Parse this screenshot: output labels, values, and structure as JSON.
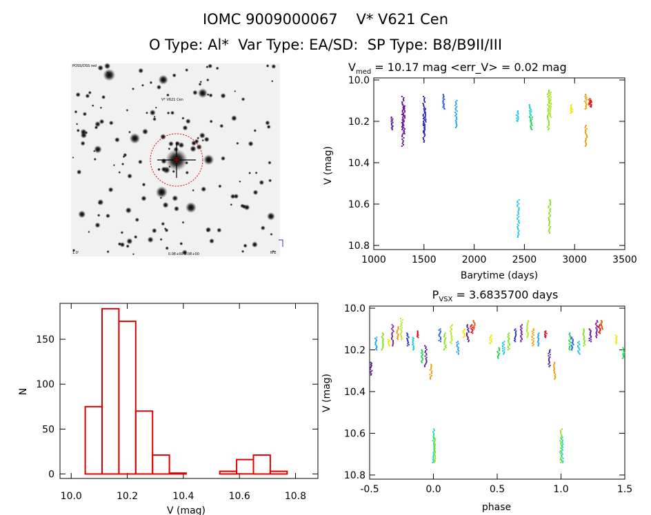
{
  "header": {
    "title": "IOMC 9009000067    V* V621 Cen",
    "subtitle": "O Type: Al*  Var Type: EA/SD:  SP Type: B8/B9II/III"
  },
  "image_panel": {
    "label_top_left": "POSS/DSS red",
    "label_marker": "V* V621 Cen",
    "label_bottom": "0.0E+00 0.0E+00",
    "label_bottom_left": "1.0'",
    "label_bottom_right": "N E",
    "circle_color": "#dd0000"
  },
  "chart_data": [
    {
      "type": "scatter",
      "title_prefix": "V",
      "title_sub": "med",
      "title_rest": " = 10.17 mag <err_V> = 0.02 mag",
      "xlabel": "Barytime (days)",
      "ylabel": "V (mag)",
      "xlim": [
        1000,
        3500
      ],
      "ylim": [
        10.82,
        9.99
      ],
      "xticks": [
        "1000",
        "1500",
        "2000",
        "2500",
        "3000",
        "3500"
      ],
      "yticks": [
        "10.0",
        "10.2",
        "10.4",
        "10.6",
        "10.8"
      ],
      "groups": [
        {
          "x": 1180,
          "y0": 10.18,
          "y1": 10.24,
          "color": "#55219a"
        },
        {
          "x": 1290,
          "y0": 10.08,
          "y1": 10.32,
          "color": "#5a1a8c"
        },
        {
          "x": 1300,
          "y0": 10.12,
          "y1": 10.26,
          "color": "#7a1a9a"
        },
        {
          "x": 1500,
          "y0": 10.08,
          "y1": 10.3,
          "color": "#3a22a8"
        },
        {
          "x": 1510,
          "y0": 10.14,
          "y1": 10.26,
          "color": "#2a3bbd"
        },
        {
          "x": 1700,
          "y0": 10.07,
          "y1": 10.14,
          "color": "#2f5ed8"
        },
        {
          "x": 1820,
          "y0": 10.1,
          "y1": 10.23,
          "color": "#22a8e6"
        },
        {
          "x": 2430,
          "y0": 10.15,
          "y1": 10.2,
          "color": "#1fc8e0"
        },
        {
          "x": 2440,
          "y0": 10.58,
          "y1": 10.76,
          "color": "#1fc8e0"
        },
        {
          "x": 2560,
          "y0": 10.12,
          "y1": 10.18,
          "color": "#1dd4c2"
        },
        {
          "x": 2570,
          "y0": 10.18,
          "y1": 10.24,
          "color": "#22d455"
        },
        {
          "x": 2740,
          "y0": 10.05,
          "y1": 10.24,
          "color": "#88e020"
        },
        {
          "x": 2760,
          "y0": 10.06,
          "y1": 10.18,
          "color": "#b6e823"
        },
        {
          "x": 2750,
          "y0": 10.58,
          "y1": 10.74,
          "color": "#88e020"
        },
        {
          "x": 2970,
          "y0": 10.12,
          "y1": 10.16,
          "color": "#f0ea10"
        },
        {
          "x": 3110,
          "y0": 10.07,
          "y1": 10.14,
          "color": "#e8a210"
        },
        {
          "x": 3115,
          "y0": 10.22,
          "y1": 10.32,
          "color": "#e8a210"
        },
        {
          "x": 3150,
          "y0": 10.09,
          "y1": 10.12,
          "color": "#e85a12"
        },
        {
          "x": 3160,
          "y0": 10.1,
          "y1": 10.13,
          "color": "#d8101e"
        }
      ]
    },
    {
      "type": "bar",
      "xlabel": "V (mag)",
      "ylabel": "N",
      "xlim": [
        9.96,
        10.88
      ],
      "ylim": [
        -5,
        190
      ],
      "xticks": [
        "10.0",
        "10.2",
        "10.4",
        "10.6",
        "10.8"
      ],
      "yticks": [
        "0",
        "50",
        "100",
        "150"
      ],
      "bin_edges": [
        10.05,
        10.11,
        10.17,
        10.23,
        10.29,
        10.35,
        10.41,
        10.47,
        10.53,
        10.59,
        10.65,
        10.71,
        10.77,
        10.83
      ],
      "counts": [
        75,
        184,
        170,
        70,
        21,
        1,
        0,
        0,
        3,
        16,
        21,
        3,
        0
      ],
      "color": "#dd0000"
    },
    {
      "type": "scatter",
      "title_prefix": "P",
      "title_sub": "VSX",
      "title_rest": " = 3.6835700 days",
      "xlabel": "phase",
      "ylabel": "V (mag)",
      "xlim": [
        -0.5,
        1.5
      ],
      "ylim": [
        10.82,
        9.99
      ],
      "xticks": [
        "-0.5",
        "0.0",
        "0.5",
        "1.0",
        "1.5"
      ],
      "yticks": [
        "10.0",
        "10.2",
        "10.4",
        "10.6",
        "10.8"
      ],
      "groups": [
        {
          "x": -0.49,
          "y0": 10.26,
          "y1": 10.32,
          "color": "#5a1a8c"
        },
        {
          "x": -0.45,
          "y0": 10.14,
          "y1": 10.2,
          "color": "#22a8e6"
        },
        {
          "x": -0.4,
          "y0": 10.12,
          "y1": 10.2,
          "color": "#88e020"
        },
        {
          "x": -0.35,
          "y0": 10.15,
          "y1": 10.18,
          "color": "#f0ea10"
        },
        {
          "x": -0.32,
          "y0": 10.08,
          "y1": 10.18,
          "color": "#7a1a9a"
        },
        {
          "x": -0.28,
          "y0": 10.09,
          "y1": 10.15,
          "color": "#e8a210"
        },
        {
          "x": -0.25,
          "y0": 10.05,
          "y1": 10.15,
          "color": "#b6e823"
        },
        {
          "x": -0.2,
          "y0": 10.12,
          "y1": 10.18,
          "color": "#2a3bbd"
        },
        {
          "x": -0.16,
          "y0": 10.14,
          "y1": 10.2,
          "color": "#1fc8e0"
        },
        {
          "x": -0.12,
          "y0": 10.11,
          "y1": 10.14,
          "color": "#d8101e"
        },
        {
          "x": -0.09,
          "y0": 10.2,
          "y1": 10.26,
          "color": "#22d455"
        },
        {
          "x": -0.06,
          "y0": 10.18,
          "y1": 10.28,
          "color": "#55219a"
        },
        {
          "x": -0.02,
          "y0": 10.27,
          "y1": 10.34,
          "color": "#e8a210"
        },
        {
          "x": 0.0,
          "y0": 10.58,
          "y1": 10.74,
          "color": "#1dd4c2"
        },
        {
          "x": 0.01,
          "y0": 10.62,
          "y1": 10.74,
          "color": "#88e020"
        },
        {
          "x": 0.05,
          "y0": 10.1,
          "y1": 10.16,
          "color": "#2f5ed8"
        },
        {
          "x": 0.09,
          "y0": 10.12,
          "y1": 10.2,
          "color": "#88e020"
        },
        {
          "x": 0.14,
          "y0": 10.08,
          "y1": 10.17,
          "color": "#b6e823"
        },
        {
          "x": 0.19,
          "y0": 10.16,
          "y1": 10.22,
          "color": "#22a8e6"
        },
        {
          "x": 0.24,
          "y0": 10.1,
          "y1": 10.14,
          "color": "#f0ea10"
        },
        {
          "x": 0.27,
          "y0": 10.08,
          "y1": 10.16,
          "color": "#5a1a8c"
        },
        {
          "x": 0.3,
          "y0": 10.08,
          "y1": 10.12,
          "color": "#d8101e"
        },
        {
          "x": 0.32,
          "y0": 10.06,
          "y1": 10.1,
          "color": "#e85a12"
        },
        {
          "x": 0.45,
          "y0": 10.13,
          "y1": 10.17,
          "color": "#f0ea10"
        },
        {
          "x": 0.51,
          "y0": 10.19,
          "y1": 10.24,
          "color": "#22d455"
        },
        {
          "x": 0.55,
          "y0": 10.16,
          "y1": 10.22,
          "color": "#1fc8e0"
        },
        {
          "x": 0.59,
          "y0": 10.12,
          "y1": 10.2,
          "color": "#88e020"
        },
        {
          "x": 0.64,
          "y0": 10.1,
          "y1": 10.16,
          "color": "#2a3bbd"
        },
        {
          "x": 0.69,
          "y0": 10.08,
          "y1": 10.16,
          "color": "#7a1a9a"
        },
        {
          "x": 0.74,
          "y0": 10.06,
          "y1": 10.14,
          "color": "#b6e823"
        },
        {
          "x": 0.78,
          "y0": 10.1,
          "y1": 10.18,
          "color": "#e8a210"
        },
        {
          "x": 0.82,
          "y0": 10.12,
          "y1": 10.18,
          "color": "#22a8e6"
        },
        {
          "x": 0.88,
          "y0": 10.11,
          "y1": 10.14,
          "color": "#d8101e"
        },
        {
          "x": 0.91,
          "y0": 10.2,
          "y1": 10.28,
          "color": "#55219a"
        },
        {
          "x": 0.95,
          "y0": 10.26,
          "y1": 10.34,
          "color": "#e8a210"
        },
        {
          "x": 1.0,
          "y0": 10.58,
          "y1": 10.74,
          "color": "#88e020"
        },
        {
          "x": 1.01,
          "y0": 10.62,
          "y1": 10.74,
          "color": "#1dd4c2"
        },
        {
          "x": 1.07,
          "y0": 10.12,
          "y1": 10.2,
          "color": "#22d455"
        },
        {
          "x": 1.09,
          "y0": 10.14,
          "y1": 10.2,
          "color": "#2f5ed8"
        },
        {
          "x": 1.14,
          "y0": 10.16,
          "y1": 10.22,
          "color": "#1fc8e0"
        },
        {
          "x": 1.18,
          "y0": 10.1,
          "y1": 10.18,
          "color": "#88e020"
        },
        {
          "x": 1.23,
          "y0": 10.1,
          "y1": 10.16,
          "color": "#5a1a8c"
        },
        {
          "x": 1.28,
          "y0": 10.06,
          "y1": 10.14,
          "color": "#7a1a9a"
        },
        {
          "x": 1.3,
          "y0": 10.08,
          "y1": 10.12,
          "color": "#d8101e"
        },
        {
          "x": 1.32,
          "y0": 10.06,
          "y1": 10.1,
          "color": "#e85a12"
        },
        {
          "x": 1.43,
          "y0": 10.13,
          "y1": 10.17,
          "color": "#f0ea10"
        },
        {
          "x": 1.49,
          "y0": 10.19,
          "y1": 10.24,
          "color": "#22d455"
        }
      ]
    }
  ]
}
